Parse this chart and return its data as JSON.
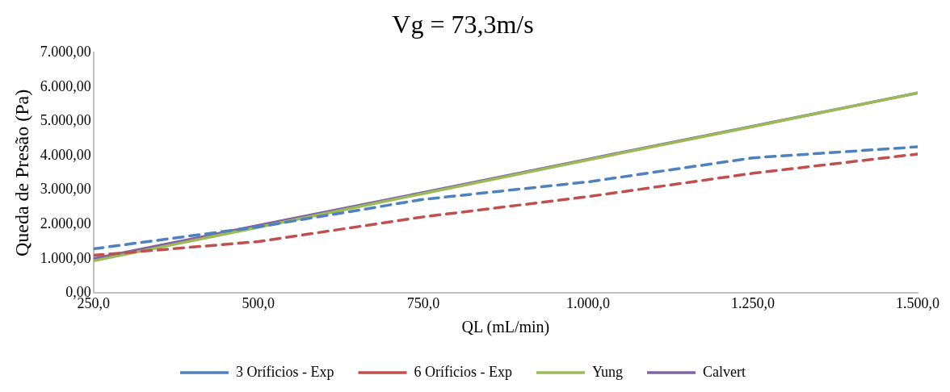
{
  "chart_data": {
    "type": "line",
    "title": "Vg = 73,3m/s",
    "xlabel": "QL (mL/min)",
    "ylabel": "Queda de Presão (Pa)",
    "x": [
      250,
      500,
      750,
      1000,
      1250,
      1500
    ],
    "xlim": [
      250,
      1500
    ],
    "xticks": [
      {
        "value": 250,
        "label": "250,0"
      },
      {
        "value": 500,
        "label": "500,0"
      },
      {
        "value": 750,
        "label": "750,0"
      },
      {
        "value": 1000,
        "label": "1.000,0"
      },
      {
        "value": 1250,
        "label": "1.250,0"
      },
      {
        "value": 1500,
        "label": "1.500,0"
      }
    ],
    "ylim": [
      0,
      7000
    ],
    "yticks": [
      {
        "value": 0,
        "label": "0,00"
      },
      {
        "value": 1000,
        "label": "1.000,00"
      },
      {
        "value": 2000,
        "label": "2.000,00"
      },
      {
        "value": 3000,
        "label": "3.000,00"
      },
      {
        "value": 4000,
        "label": "4.000,00"
      },
      {
        "value": 5000,
        "label": "5.000,00"
      },
      {
        "value": 6000,
        "label": "6.000,00"
      },
      {
        "value": 7000,
        "label": "7.000,00"
      }
    ],
    "grid": false,
    "legend": "bottom",
    "marker": "none",
    "series": [
      {
        "name": "3 Oríficios - Exp",
        "color": "#4f81bd",
        "line_style": "dashed",
        "values": [
          1290,
          1930,
          2730,
          3240,
          3940,
          4260
        ]
      },
      {
        "name": "6 Oríficios - Exp",
        "color": "#c0504d",
        "line_style": "dashed",
        "values": [
          1100,
          1500,
          2220,
          2810,
          3490,
          4050
        ]
      },
      {
        "name": "Yung",
        "color": "#9bbb59",
        "line_style": "solid",
        "values": [
          940,
          1920,
          2900,
          3880,
          4850,
          5830
        ]
      },
      {
        "name": "Calvert",
        "color": "#8064a2",
        "line_style": "solid",
        "values": [
          1000,
          1970,
          2930,
          3900,
          4860,
          5830
        ]
      }
    ]
  }
}
